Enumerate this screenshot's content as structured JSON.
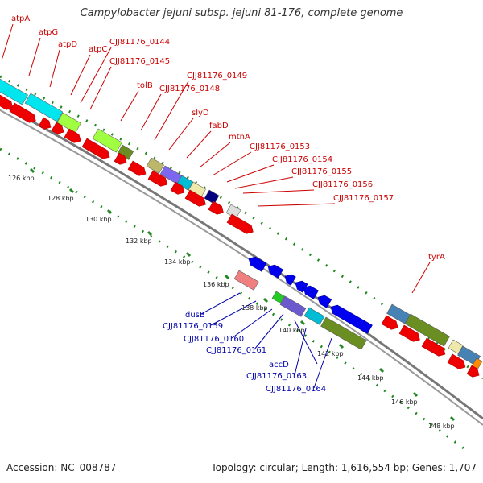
{
  "title": "Campylobacter jejuni subsp. jejuni 81-176, complete genome",
  "footer": {
    "accession": "Accession: NC_008787",
    "stats": "Topology: circular; Length: 1,616,554 bp; Genes: 1,707"
  },
  "gene_labels_red": [
    "atpA",
    "atpG",
    "atpD",
    "atpC",
    "CJJ81176_0144",
    "CJJ81176_0145",
    "tolB",
    "CJJ81176_0148",
    "CJJ81176_0149",
    "slyD",
    "fabD",
    "mtnA",
    "CJJ81176_0153",
    "CJJ81176_0154",
    "CJJ81176_0155",
    "CJJ81176_0156",
    "CJJ81176_0157",
    "tyrA"
  ],
  "gene_labels_blue": [
    "dusB",
    "CJJ81176_0159",
    "CJJ81176_0160",
    "CJJ81176_0161",
    "accD",
    "CJJ81176_0163",
    "CJJ81176_0164"
  ],
  "ruler_labels": [
    "126 kbp",
    "128 kbp",
    "130 kbp",
    "132 kbp",
    "134 kbp",
    "136 kbp",
    "138 kbp",
    "140 kbp",
    "142 kbp",
    "144 kbp",
    "146 kbp",
    "148 kbp"
  ],
  "colors": {
    "forward_cds": "#ee0000",
    "reverse_cds": "#0000ee",
    "backbone": "#888888",
    "ruler": "#228822",
    "label_red": "#cc0000",
    "label_blue": "#0000aa"
  }
}
